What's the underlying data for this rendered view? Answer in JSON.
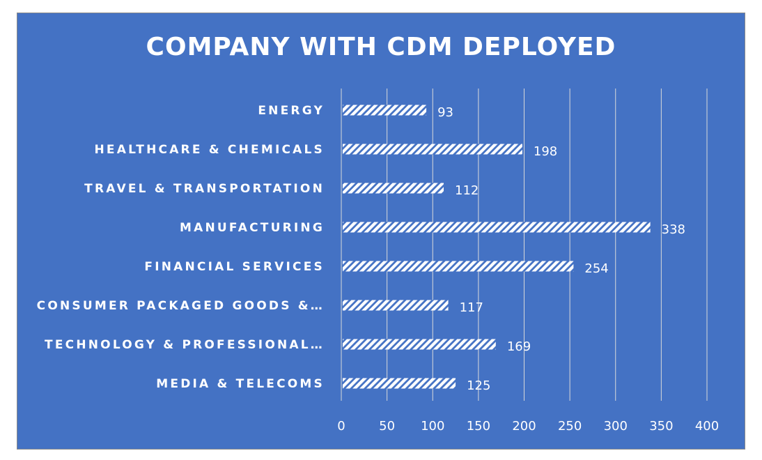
{
  "chart_data": {
    "type": "bar",
    "orientation": "horizontal",
    "title": "COMPANY WITH CDM DEPLOYED",
    "categories": [
      "ENERGY",
      "HEALTHCARE & CHEMICALS",
      "TRAVEL & TRANSPORTATION",
      "MANUFACTURING",
      "FINANCIAL SERVICES",
      "CONSUMER PACKAGED GOODS &…",
      "TECHNOLOGY & PROFESSIONAL…",
      "MEDIA & TELECOMS"
    ],
    "values": [
      93,
      198,
      112,
      338,
      254,
      117,
      169,
      125
    ],
    "xlim": [
      0,
      400
    ],
    "xticks": [
      0,
      50,
      100,
      150,
      200,
      250,
      300,
      350,
      400
    ],
    "grid": true,
    "legend": "none",
    "data_labels": true,
    "bar_fill": "white diagonal hatch",
    "colors": {
      "background": "#4472C4",
      "bar": "#ffffff",
      "text": "#ffffff",
      "grid": "#d9d9d9"
    }
  }
}
